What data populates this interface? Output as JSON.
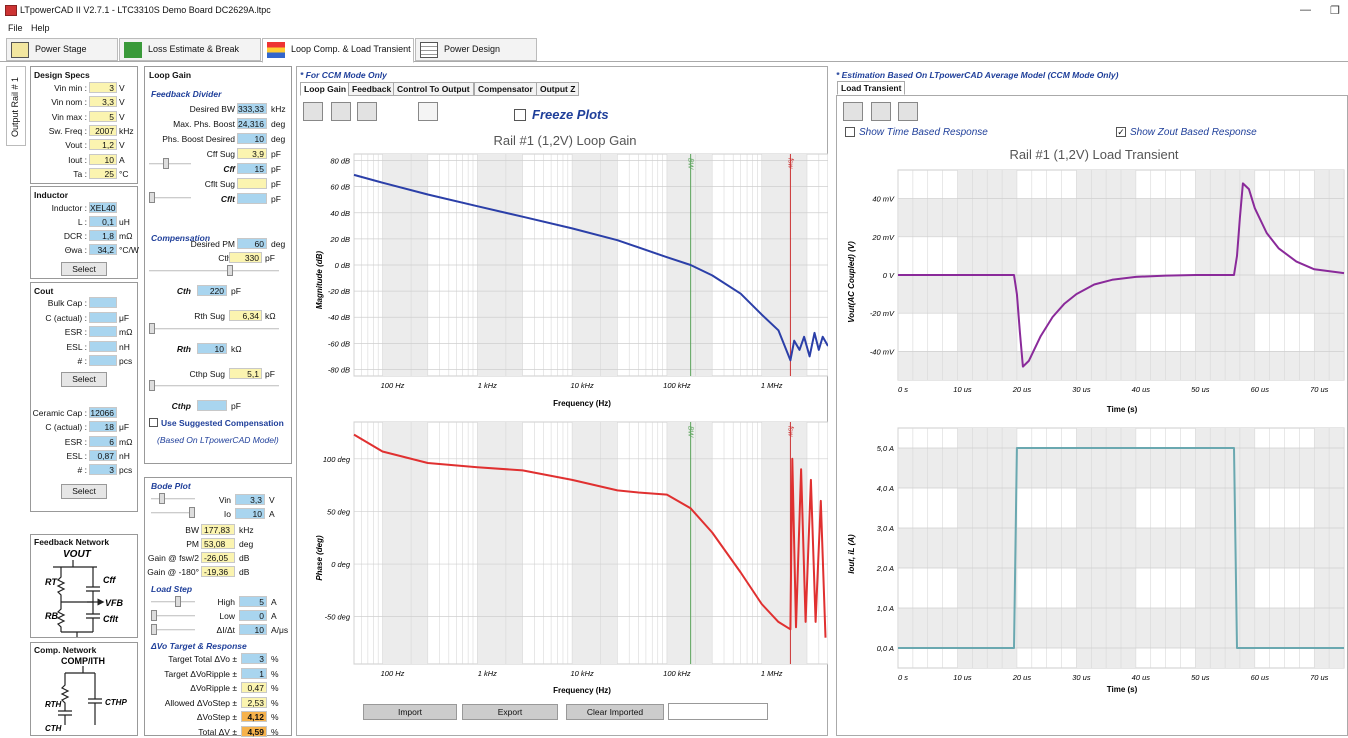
{
  "window": {
    "title": "LTpowerCAD II V2.7.1 - LTC3310S Demo Board DC2629A.ltpc",
    "minimize": "—",
    "restore": "❐"
  },
  "menu": [
    "File",
    "Help"
  ],
  "main_tabs": [
    "Power Stage Design",
    "Loss Estimate & Break Down",
    "Loop Comp. & Load Transient",
    "Power Design Summary"
  ],
  "rail_tab": "Output Rail # 1",
  "design_specs": {
    "title": "Design Specs",
    "rows": [
      {
        "label": "Vin min :",
        "value": "3",
        "unit": "V"
      },
      {
        "label": "Vin nom :",
        "value": "3,3",
        "unit": "V"
      },
      {
        "label": "Vin max :",
        "value": "5",
        "unit": "V"
      },
      {
        "label": "Sw. Freq :",
        "value": "2007",
        "unit": "kHz"
      },
      {
        "label": "Vout :",
        "value": "1,2",
        "unit": "V"
      },
      {
        "label": "Iout :",
        "value": "10",
        "unit": "A"
      },
      {
        "label": "Ta :",
        "value": "25",
        "unit": "°C"
      }
    ]
  },
  "inductor": {
    "title": "Inductor",
    "rows": [
      {
        "label": "Inductor :",
        "value": "XEL40",
        "unit": ""
      },
      {
        "label": "L :",
        "value": "0,1",
        "unit": "uH"
      },
      {
        "label": "DCR :",
        "value": "1,8",
        "unit": "mΩ"
      },
      {
        "label": "Θwa :",
        "value": "34,2",
        "unit": "°C/W"
      }
    ],
    "select": "Select"
  },
  "cout": {
    "title": "Cout",
    "bulk_rows": [
      {
        "label": "Bulk Cap :",
        "value": "",
        "unit": ""
      },
      {
        "label": "C (actual) :",
        "value": "",
        "unit": "μF"
      },
      {
        "label": "ESR :",
        "value": "",
        "unit": "mΩ"
      },
      {
        "label": "ESL :",
        "value": "",
        "unit": "nH"
      },
      {
        "label": "# :",
        "value": "",
        "unit": "pcs"
      }
    ],
    "select": "Select",
    "ceramic_rows": [
      {
        "label": "Ceramic Cap :",
        "value": "12066",
        "unit": ""
      },
      {
        "label": "C (actual) :",
        "value": "18",
        "unit": "μF"
      },
      {
        "label": "ESR :",
        "value": "6",
        "unit": "mΩ"
      },
      {
        "label": "ESL :",
        "value": "0,87",
        "unit": "nH"
      },
      {
        "label": "# :",
        "value": "3",
        "unit": "pcs"
      }
    ],
    "select2": "Select"
  },
  "feedback_network": {
    "title": "Feedback Network",
    "vout": "VOUT",
    "rt": "RT",
    "cff": "Cff",
    "vfb": "VFB",
    "rb": "RB",
    "cflt": "Cflt"
  },
  "comp_network": {
    "title": "Comp. Network",
    "node": "COMP/ITH",
    "rth": "RTH",
    "cthp": "CTHP",
    "cth": "CTH"
  },
  "loop_gain": {
    "title": "Loop Gain",
    "feedback_divider": "Feedback Divider",
    "rows": [
      {
        "label": "Desired BW",
        "value": "333,33",
        "unit": "kHz",
        "c": "b"
      },
      {
        "label": "Max. Phs. Boost",
        "value": "24,316",
        "unit": "deg",
        "c": "b"
      },
      {
        "label": "Phs. Boost Desired",
        "value": "10",
        "unit": "deg",
        "c": "b"
      },
      {
        "label": "Cff Sug",
        "value": "3,9",
        "unit": "pF",
        "c": "y"
      },
      {
        "label": "Cff",
        "value": "15",
        "unit": "pF",
        "c": "b"
      },
      {
        "label": "Cflt Sug",
        "value": "",
        "unit": "pF",
        "c": "y"
      },
      {
        "label": "Cflt",
        "value": "",
        "unit": "pF",
        "c": "b"
      },
      {
        "label": "Desired PM",
        "value": "60",
        "unit": "deg",
        "c": "b"
      }
    ],
    "compensation": "Compensation",
    "cth_sug": {
      "label": "Cth Sug",
      "value": "330",
      "unit": "pF"
    },
    "cth": {
      "label": "Cth",
      "value": "220",
      "unit": "pF"
    },
    "rth_sug": {
      "label": "Rth Sug",
      "value": "6,34",
      "unit": "kΩ"
    },
    "rth": {
      "label": "Rth",
      "value": "10",
      "unit": "kΩ"
    },
    "cthp_sug": {
      "label": "Cthp Sug",
      "value": "5,1",
      "unit": "pF"
    },
    "cthp": {
      "label": "Cthp",
      "value": "",
      "unit": "pF"
    },
    "use_suggested": "Use Suggested Compensation",
    "based_on": "(Based On LTpowerCAD Model)"
  },
  "bode_plot": {
    "title": "Bode Plot",
    "vin": {
      "label": "Vin",
      "value": "3,3",
      "unit": "V"
    },
    "io": {
      "label": "Io",
      "value": "10",
      "unit": "A"
    },
    "bw": {
      "label": "BW",
      "value": "177,83",
      "unit": "kHz"
    },
    "pm": {
      "label": "PM",
      "value": "53,08",
      "unit": "deg"
    },
    "gain_fsw": {
      "label": "Gain @ fsw/2",
      "value": "-26,05",
      "unit": "dB"
    },
    "gain_180": {
      "label": "Gain @ -180°",
      "value": "-19,36",
      "unit": "dB"
    }
  },
  "load_step": {
    "title": "Load Step",
    "high": {
      "label": "High",
      "value": "5",
      "unit": "A"
    },
    "low": {
      "label": "Low",
      "value": "0",
      "unit": "A"
    },
    "didt": {
      "label": "ΔI/Δt",
      "value": "10",
      "unit": "A/μs"
    }
  },
  "dvo": {
    "title": "ΔVo Target & Response",
    "rows": [
      {
        "label": "Target Total ΔVo ±",
        "value": "3",
        "unit": "%",
        "c": "b"
      },
      {
        "label": "Target ΔVoRipple ±",
        "value": "1",
        "unit": "%",
        "c": "b"
      },
      {
        "label": "ΔVoRipple ±",
        "value": "0,47",
        "unit": "%",
        "c": "y"
      },
      {
        "label": "Allowed ΔVoStep ±",
        "value": "2,53",
        "unit": "%",
        "c": "y"
      },
      {
        "label": "ΔVoStep ±",
        "value": "4,12",
        "unit": "%",
        "c": "o"
      },
      {
        "label": "Total ΔV ±",
        "value": "4,59",
        "unit": "%",
        "c": "o"
      }
    ]
  },
  "ccm_note": "* For CCM Mode Only",
  "center_tabs": [
    "Loop Gain",
    "Feedback",
    "Control To Output",
    "Compensator",
    "Output Z"
  ],
  "freeze_plots": "Freeze Plots",
  "gain_chart": {
    "title": "Rail #1 (1,2V) Loop Gain",
    "ylabel": "Magnitude (dB)",
    "xlabel": "Frequency (Hz)",
    "yticks": [
      "80 dB",
      "60 dB",
      "40 dB",
      "20 dB",
      "0 dB",
      "-20 dB",
      "-40 dB",
      "-60 dB",
      "-80 dB"
    ],
    "xticks": [
      "100 Hz",
      "1 kHz",
      "10 kHz",
      "100 kHz",
      "1 MHz"
    ],
    "bw_mark": "BW",
    "fsw_mark": "fsw"
  },
  "phase_chart": {
    "ylabel": "Phase (deg)",
    "xlabel": "Frequency (Hz)",
    "yticks": [
      "100 deg",
      "50 deg",
      "0 deg",
      "-50 deg"
    ],
    "xticks": [
      "100 Hz",
      "1 kHz",
      "10 kHz",
      "100 kHz",
      "1 MHz"
    ],
    "bw_mark": "BW",
    "fsw_mark": "fsw"
  },
  "buttons": {
    "import": "Import",
    "export": "Export",
    "clear": "Clear Imported"
  },
  "right_note": "* Estimation Based On LTpowerCAD Average Model (CCM Mode Only)",
  "right_tab": "Load Transient",
  "show_time": "Show Time Based Response",
  "show_zout": "Show Zout Based Response",
  "vout_chart": {
    "title": "Rail #1 (1,2V) Load Transient",
    "ylabel": "Vout(AC Coupled) (V)",
    "xlabel": "Time (s)",
    "yticks": [
      "40 mV",
      "20 mV",
      "0 V",
      "-20 mV",
      "-40 mV"
    ],
    "xticks": [
      "0 s",
      "10 us",
      "20 us",
      "30 us",
      "40 us",
      "50 us",
      "60 us",
      "70 us"
    ]
  },
  "iout_chart": {
    "ylabel": "Iout, iL (A)",
    "xlabel": "Time (s)",
    "yticks": [
      "5,0 A",
      "4,0 A",
      "3,0 A",
      "2,0 A",
      "1,0 A",
      "0,0 A"
    ],
    "xticks": [
      "0 s",
      "10 us",
      "20 us",
      "30 us",
      "40 us",
      "50 us",
      "60 us",
      "70 us"
    ]
  },
  "chart_data": [
    {
      "type": "line",
      "title": "Rail #1 (1,2V) Loop Gain",
      "xlabel": "Frequency (Hz)",
      "ylabel": "Magnitude (dB)",
      "xscale": "log",
      "xlim": [
        50,
        5000000
      ],
      "ylim": [
        -85,
        85
      ],
      "series": [
        {
          "color": "#2b3fa8",
          "x": [
            50,
            100,
            300,
            1000,
            3000,
            10000,
            30000,
            100000,
            177830,
            300000,
            600000,
            1000000,
            1500000,
            2007000,
            2200000,
            2500000,
            2800000,
            3200000,
            3600000,
            4000000,
            4400000,
            5000000
          ],
          "y": [
            69,
            63,
            54,
            45,
            37,
            28,
            19,
            6,
            0,
            -8,
            -22,
            -38,
            -50,
            -73,
            -58,
            -65,
            -55,
            -70,
            -52,
            -65,
            -55,
            -62
          ]
        }
      ],
      "markers": [
        {
          "label": "BW",
          "x": 177830,
          "color": "#5aa35a"
        },
        {
          "label": "fsw",
          "x": 2007000,
          "color": "#c33"
        }
      ]
    },
    {
      "type": "line",
      "xlabel": "Frequency (Hz)",
      "ylabel": "Phase (deg)",
      "xscale": "log",
      "xlim": [
        50,
        5000000
      ],
      "ylim": [
        -95,
        135
      ],
      "series": [
        {
          "color": "#e03030",
          "x": [
            50,
            100,
            300,
            1000,
            3000,
            10000,
            30000,
            50000,
            100000,
            177830,
            300000,
            600000,
            1000000,
            1500000,
            2007000,
            2100000,
            2300000,
            2600000,
            2900000,
            3300000,
            3700000,
            4200000,
            4700000
          ],
          "y": [
            123,
            107,
            96,
            92,
            89,
            80,
            70,
            68,
            66,
            53,
            30,
            -8,
            -38,
            -55,
            -62,
            100,
            -60,
            90,
            -55,
            80,
            -55,
            60,
            -70
          ]
        }
      ],
      "markers": [
        {
          "label": "BW",
          "x": 177830,
          "color": "#5aa35a"
        },
        {
          "label": "fsw",
          "x": 2007000,
          "color": "#c33"
        }
      ]
    },
    {
      "type": "line",
      "title": "Rail #1 (1,2V) Load Transient",
      "xlabel": "Time (s)",
      "ylabel": "Vout(AC Coupled) (V)",
      "xlim": [
        0,
        75
      ],
      "ylim": [
        -55,
        55
      ],
      "series": [
        {
          "color": "#8a2a9a",
          "x": [
            0,
            19.5,
            20,
            20.5,
            21,
            22,
            24,
            26,
            28,
            30,
            33,
            36,
            40,
            45,
            50,
            56.5,
            57,
            57.5,
            58,
            59,
            60,
            62,
            64,
            67,
            70,
            75
          ],
          "y": [
            0,
            0,
            -10,
            -30,
            -48,
            -45,
            -32,
            -22,
            -15,
            -10,
            -5,
            -2.5,
            -1,
            -0.3,
            0,
            0,
            10,
            30,
            48,
            45,
            35,
            22,
            14,
            7,
            3,
            1
          ]
        }
      ]
    },
    {
      "type": "line",
      "xlabel": "Time (s)",
      "ylabel": "Iout, iL (A)",
      "xlim": [
        0,
        75
      ],
      "ylim": [
        -0.5,
        5.5
      ],
      "series": [
        {
          "color": "#6aa8b0",
          "x": [
            0,
            19.5,
            20,
            56.5,
            57,
            75
          ],
          "y": [
            0,
            0,
            5,
            5,
            0,
            0
          ]
        }
      ]
    }
  ]
}
